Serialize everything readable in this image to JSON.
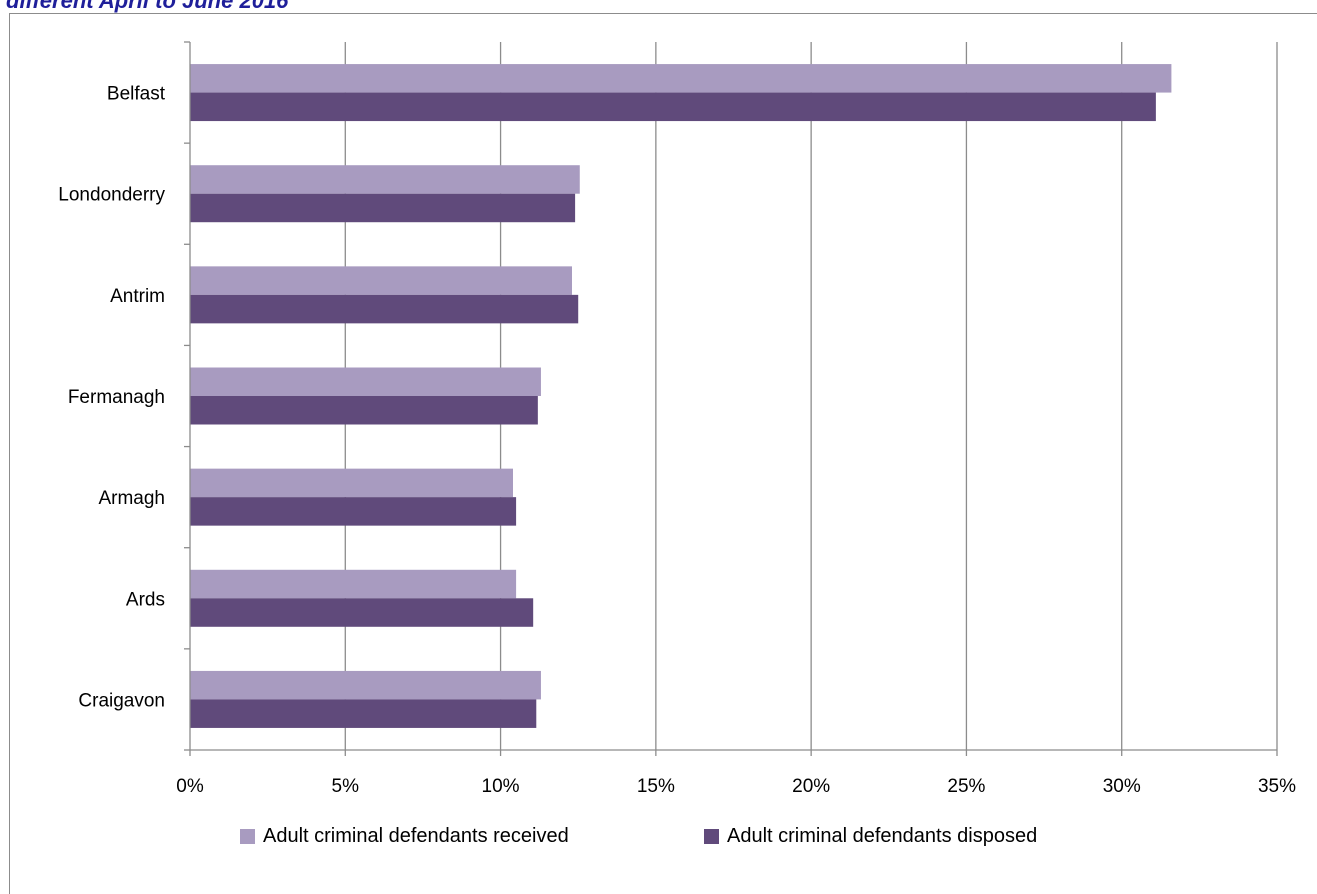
{
  "header": {
    "title": "different April to June 2016"
  },
  "chart_data": {
    "type": "bar",
    "orientation": "horizontal",
    "categories": [
      "Belfast",
      "Londonderry",
      "Antrim",
      "Fermanagh",
      "Armagh",
      "Ards",
      "Craigavon"
    ],
    "series": [
      {
        "name": "Adult criminal defendants received",
        "color": "#a89bc0",
        "values": [
          31.6,
          12.55,
          12.3,
          11.3,
          10.4,
          10.5,
          11.3
        ]
      },
      {
        "name": "Adult criminal defendants disposed",
        "color": "#604a7b",
        "values": [
          31.1,
          12.4,
          12.5,
          11.2,
          10.5,
          11.05,
          11.15
        ]
      }
    ],
    "xlim": [
      0,
      35
    ],
    "xticks": [
      "0%",
      "5%",
      "10%",
      "15%",
      "20%",
      "25%",
      "30%",
      "35%"
    ],
    "xtick_values": [
      0,
      5,
      10,
      15,
      20,
      25,
      30,
      35
    ],
    "grid": true,
    "legend_position": "bottom"
  }
}
